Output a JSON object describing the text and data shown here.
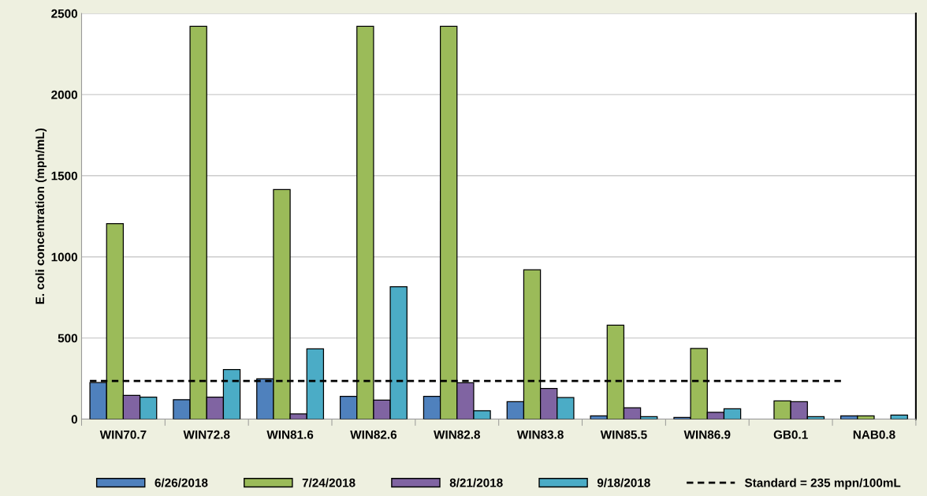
{
  "chart_data": {
    "type": "bar",
    "ylabel": "E. coli concentration (mpn/mL)",
    "categories": [
      "WIN70.7",
      "WIN72.8",
      "WIN81.6",
      "WIN82.6",
      "WIN82.8",
      "WIN83.8",
      "WIN85.5",
      "WIN86.9",
      "GB0.1",
      "NAB0.8"
    ],
    "series": [
      {
        "name": "6/26/2018",
        "color": "#4f81bd",
        "values": [
          225,
          120,
          248,
          140,
          140,
          108,
          20,
          10,
          null,
          20
        ]
      },
      {
        "name": "7/24/2018",
        "color": "#9bbb59",
        "values": [
          1205,
          2420,
          1414,
          2420,
          2420,
          920,
          579,
          435,
          112,
          20
        ]
      },
      {
        "name": "8/21/2018",
        "color": "#8064a2",
        "values": [
          146,
          135,
          32,
          117,
          224,
          189,
          70,
          42,
          108,
          null
        ]
      },
      {
        "name": "9/18/2018",
        "color": "#4bacc6",
        "values": [
          136,
          306,
          433,
          816,
          52,
          133,
          15,
          64,
          15,
          25
        ]
      }
    ],
    "ref_lines": [
      {
        "axis": "y",
        "value": 235,
        "label": "Standard = 235 mpn/100mL",
        "color": "#000000",
        "line_style": "dashed"
      }
    ],
    "ylim": [
      0,
      2500
    ],
    "yticks": [
      0,
      500,
      1000,
      1500,
      2000,
      2500
    ],
    "grid": "y",
    "legend": "bottom"
  }
}
